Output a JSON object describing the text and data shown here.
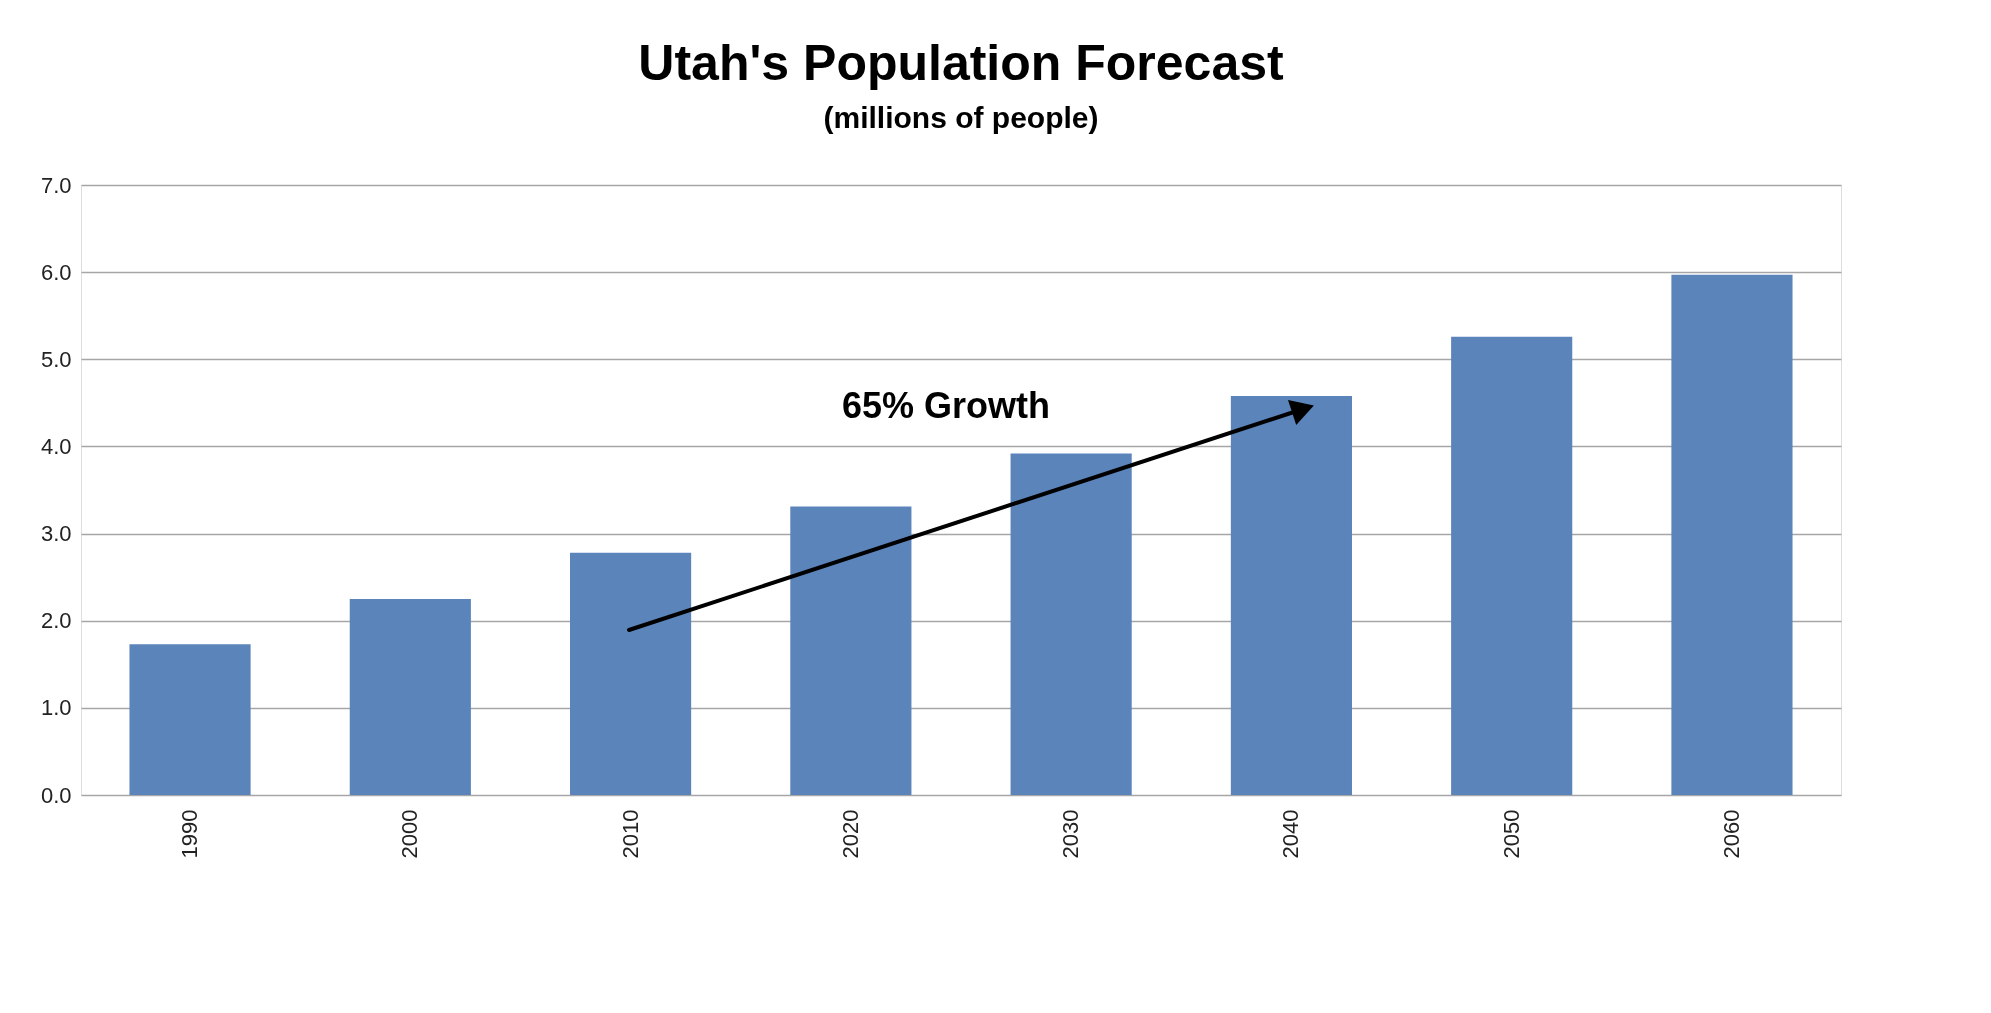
{
  "chart_data": {
    "type": "bar",
    "title": "Utah's Population Forecast",
    "subtitle": "(millions of people)",
    "categories": [
      "1990",
      "2000",
      "2010",
      "2020",
      "2030",
      "2040",
      "2050",
      "2060"
    ],
    "values": [
      1.73,
      2.25,
      2.78,
      3.31,
      3.92,
      4.58,
      5.26,
      5.97
    ],
    "color": "#5b84bb",
    "ylim": [
      0,
      7
    ],
    "yticks": [
      {
        "value": 0,
        "label": "0.0"
      },
      {
        "value": 1,
        "label": "1.0"
      },
      {
        "value": 2,
        "label": "2.0"
      },
      {
        "value": 3,
        "label": "3.0"
      },
      {
        "value": 4,
        "label": "4.0"
      },
      {
        "value": 5,
        "label": "5.0"
      },
      {
        "value": 6,
        "label": "6.0"
      },
      {
        "value": 7,
        "label": "7.0"
      }
    ],
    "grid": "y",
    "annotations": [
      "65% Growth"
    ]
  }
}
